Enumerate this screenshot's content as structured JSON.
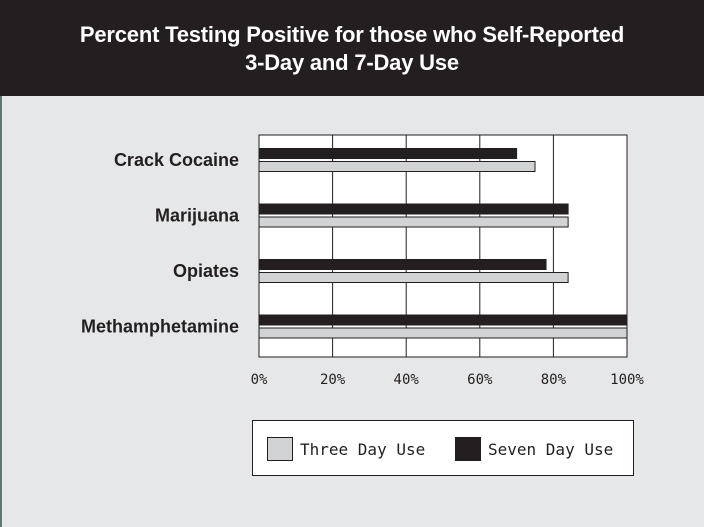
{
  "title": {
    "line1": "Percent Testing Positive for those who Self-Reported",
    "line2": "3-Day and 7-Day Use"
  },
  "colors": {
    "header_bg": "#231f20",
    "panel_bg": "#e6e7e8",
    "plot_bg": "#ffffff",
    "seven_day": "#231f20",
    "three_day": "#d1d3d4"
  },
  "chart_data": {
    "type": "bar",
    "orientation": "horizontal",
    "categories": [
      "Crack Cocaine",
      "Marijuana",
      "Opiates",
      "Methamphetamine"
    ],
    "series": [
      {
        "name": "Seven Day Use",
        "values": [
          70,
          84,
          78,
          100
        ],
        "color": "#231f20"
      },
      {
        "name": "Three Day Use",
        "values": [
          75,
          84,
          84,
          100
        ],
        "color": "#d1d3d4"
      }
    ],
    "xlim": [
      0,
      100
    ],
    "xticks": [
      0,
      20,
      40,
      60,
      80,
      100
    ],
    "xtick_labels": [
      "0%",
      "20%",
      "40%",
      "60%",
      "80%",
      "100%"
    ],
    "grid": "vertical",
    "legend": {
      "placement": "bottom",
      "items": [
        {
          "label": "Three Day Use",
          "color": "#d1d3d4"
        },
        {
          "label": "Seven Day Use",
          "color": "#231f20"
        }
      ]
    }
  }
}
